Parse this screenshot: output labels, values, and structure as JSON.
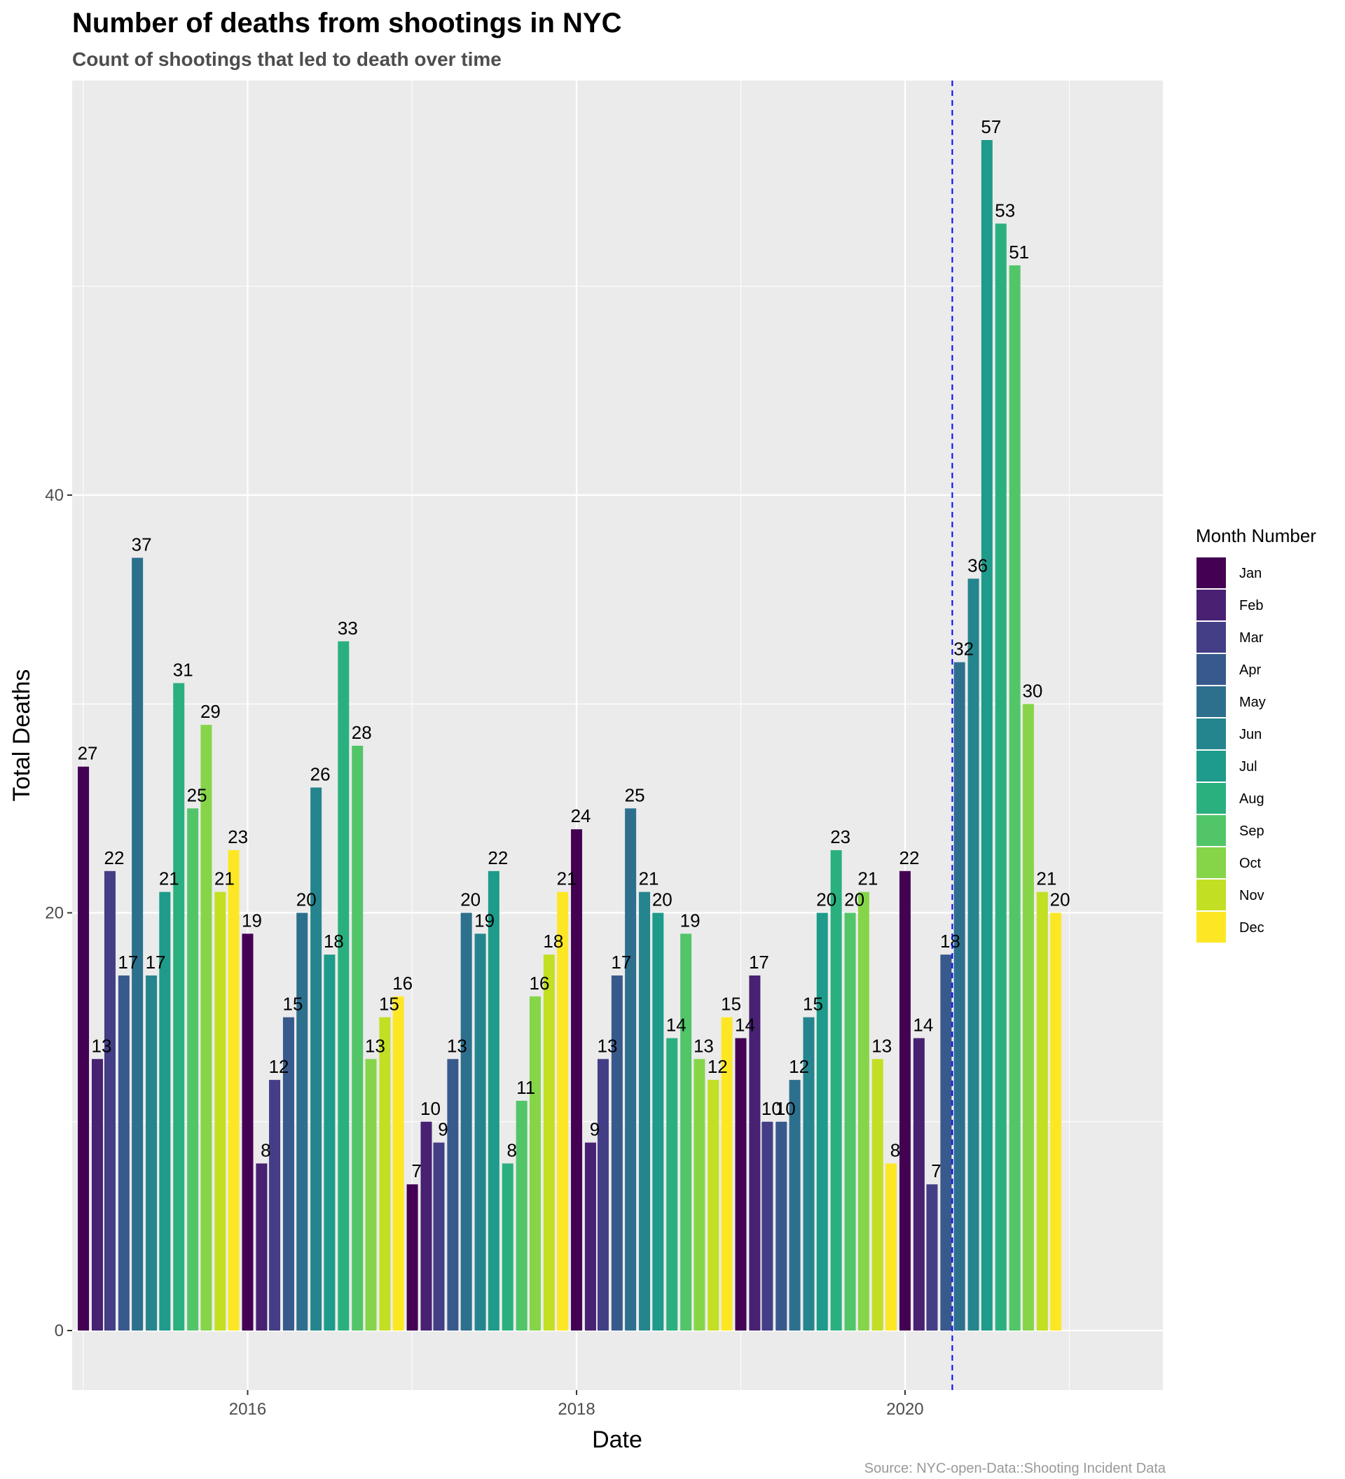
{
  "chart_data": {
    "type": "bar",
    "title": "Number of deaths from shootings in NYC",
    "subtitle": "Count of shootings that led to death over time",
    "xlabel": "Date",
    "ylabel": "Total Deaths",
    "caption": "Source: NYC-open-Data::Shooting Incident Data",
    "xlim": [
      "2014-12-07",
      "2021-07-27"
    ],
    "ylim": [
      -2.85,
      59.85
    ],
    "x_ticks": [
      {
        "date": "2016-01-01",
        "label": "2016"
      },
      {
        "date": "2018-01-01",
        "label": "2018"
      },
      {
        "date": "2020-01-01",
        "label": "2020"
      }
    ],
    "y_ticks": [
      {
        "value": 0,
        "label": "0"
      },
      {
        "value": 20,
        "label": "20"
      },
      {
        "value": 40,
        "label": "40"
      }
    ],
    "grid": true,
    "reference_line": {
      "date": "2020-04-15",
      "style": "dashed",
      "color": "#0000ff"
    },
    "legend": {
      "title": "Month Number",
      "position": "right",
      "items": [
        {
          "label": "Jan",
          "color": "#440154"
        },
        {
          "label": "Feb",
          "color": "#482173"
        },
        {
          "label": "Mar",
          "color": "#433e85"
        },
        {
          "label": "Apr",
          "color": "#38598c"
        },
        {
          "label": "May",
          "color": "#2d708e"
        },
        {
          "label": "Jun",
          "color": "#25858e"
        },
        {
          "label": "Jul",
          "color": "#1e9b8a"
        },
        {
          "label": "Aug",
          "color": "#2ab07f"
        },
        {
          "label": "Sep",
          "color": "#52c569"
        },
        {
          "label": "Oct",
          "color": "#86d549"
        },
        {
          "label": "Nov",
          "color": "#c2df23"
        },
        {
          "label": "Dec",
          "color": "#fde725"
        }
      ]
    },
    "start_year": 2015,
    "values": [
      27,
      13,
      22,
      17,
      37,
      17,
      21,
      31,
      25,
      29,
      21,
      23,
      19,
      8,
      12,
      15,
      20,
      26,
      18,
      33,
      28,
      13,
      15,
      16,
      7,
      10,
      9,
      13,
      20,
      19,
      22,
      8,
      11,
      16,
      18,
      21,
      24,
      9,
      13,
      17,
      25,
      21,
      20,
      14,
      19,
      13,
      12,
      15,
      14,
      17,
      10,
      10,
      12,
      15,
      20,
      23,
      20,
      21,
      13,
      8,
      22,
      14,
      7,
      18,
      32,
      36,
      57,
      53,
      51,
      30,
      21,
      20
    ]
  }
}
